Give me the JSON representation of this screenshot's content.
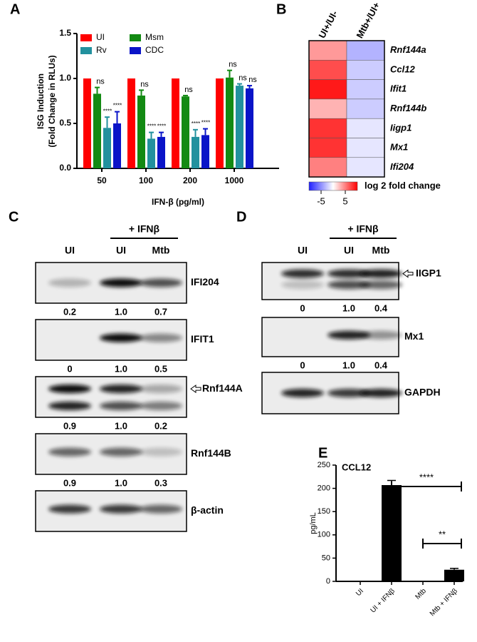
{
  "panel_labels": [
    "A",
    "B",
    "C",
    "D",
    "E"
  ],
  "chart_data": [
    {
      "type": "grouped_bar",
      "ylabel": [
        "ISG Induction",
        "(Fold Change in RLUs)"
      ],
      "xlabel": "IFN-β (pg/ml)",
      "categories": [
        "50",
        "100",
        "200",
        "1000"
      ],
      "ylim": [
        0,
        1.5
      ],
      "yticks": [
        {
          "value": 0,
          "label": "0.0"
        },
        0.5,
        {
          "value": 1,
          "label": "1.0"
        },
        1.5
      ],
      "series": [
        {
          "name": "UI",
          "color": "#ff0000",
          "values": [
            1,
            1,
            1,
            1
          ],
          "errors": [
            0,
            0,
            0,
            0
          ]
        },
        {
          "name": "Msm",
          "color": "#138a13",
          "values": [
            0.83,
            0.81,
            0.8,
            1.01
          ],
          "errors": [
            0.07,
            0.06,
            0.01,
            0.08
          ],
          "annotations": [
            "ns",
            "ns",
            "ns",
            "ns"
          ]
        },
        {
          "name": "Rv",
          "color": "#22919e",
          "values": [
            0.45,
            0.33,
            0.35,
            0.92
          ],
          "errors": [
            0.12,
            0.07,
            0.08,
            0.02
          ],
          "annotations": [
            "****",
            "****",
            "****",
            "ns"
          ]
        },
        {
          "name": "CDC",
          "color": "#0a14c8",
          "values": [
            0.5,
            0.35,
            0.37,
            0.89
          ],
          "errors": [
            0.13,
            0.05,
            0.07,
            0.03
          ],
          "annotations": [
            "****",
            "****",
            "****",
            "ns"
          ]
        }
      ]
    },
    {
      "type": "heatmap",
      "columns": [
        "UI+/UI-",
        "Mtb+/UI+"
      ],
      "rows": [
        "Rnf144a",
        "Ccl12",
        "Ifit1",
        "Rnf144b",
        "Iigp1",
        "Mx1",
        "Ifi204"
      ],
      "values": [
        [
          4,
          -3
        ],
        [
          7,
          -2
        ],
        [
          9,
          -2
        ],
        [
          3,
          -2
        ],
        [
          8,
          -1
        ],
        [
          8,
          -1
        ],
        [
          5,
          -1
        ]
      ],
      "clim": [
        -10,
        10
      ],
      "cticks": [
        -5,
        5
      ],
      "colorbar_label": "log 2 fold change"
    },
    {
      "type": "bar",
      "title": "CCL12",
      "ylabel": "pg/mL",
      "categories": [
        "UI",
        "UI + IFNβ",
        "Mtb",
        "Mtb + IFNβ"
      ],
      "values": [
        0,
        207,
        0,
        25
      ],
      "errors": [
        null,
        10,
        null,
        3
      ],
      "color": "#000000",
      "ylim": [
        0,
        250
      ],
      "yticks": [
        0,
        50,
        100,
        150,
        200,
        250
      ],
      "significance": [
        "****",
        "**"
      ]
    }
  ],
  "blots": [
    {
      "control_lane": "UI",
      "group_label": "+ IFNβ",
      "group_lanes": [
        "UI",
        "Mtb"
      ],
      "rows": [
        {
          "label": "IFI204",
          "quant": [
            "0.2",
            "1.0",
            "0.7"
          ]
        },
        {
          "label": "IFIT1",
          "quant": [
            "0",
            "1.0",
            "0.5"
          ]
        },
        {
          "label": "Rnf144A",
          "quant": [
            "0.9",
            "1.0",
            "0.2"
          ]
        },
        {
          "label": "Rnf144B",
          "quant": [
            "0.9",
            "1.0",
            "0.3"
          ]
        },
        {
          "label": "β-actin"
        }
      ]
    },
    {
      "control_lane": "UI",
      "group_label": "+ IFNβ",
      "group_lanes": [
        "UI",
        "Mtb"
      ],
      "rows": [
        {
          "label": "IIGP1",
          "quant": [
            "0",
            "1.0",
            "0.4"
          ]
        },
        {
          "label": "Mx1",
          "quant": [
            "0",
            "1.0",
            "0.4"
          ]
        },
        {
          "label": "GAPDH"
        }
      ]
    }
  ]
}
